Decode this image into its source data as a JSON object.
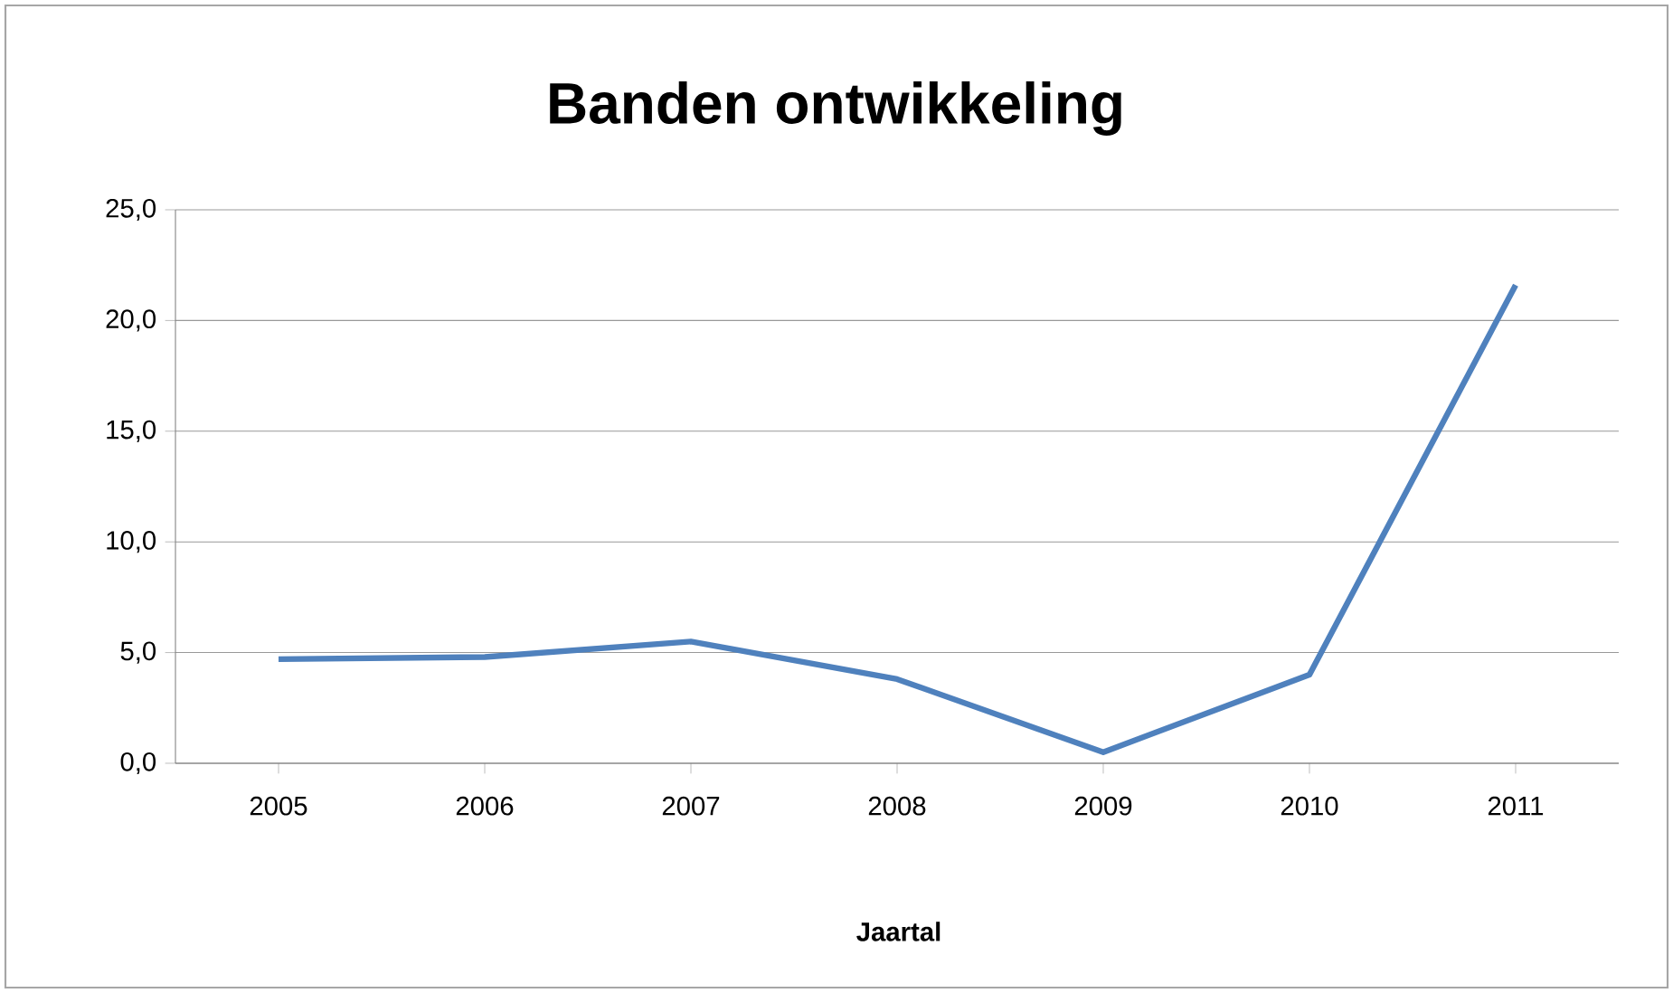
{
  "chart_data": {
    "type": "line",
    "title": "Banden ontwikkeling",
    "xlabel": "Jaartal",
    "categories": [
      "2005",
      "2006",
      "2007",
      "2008",
      "2009",
      "2010",
      "2011"
    ],
    "series": [
      {
        "color": "#4f81bd",
        "values": [
          4.7,
          4.8,
          5.5,
          3.8,
          0.5,
          4.0,
          21.6
        ]
      }
    ],
    "ylim": [
      0,
      25
    ],
    "yticks": [
      {
        "value": 0,
        "label": "0,0"
      },
      {
        "value": 5,
        "label": "5,0"
      },
      {
        "value": 10,
        "label": "10,0"
      },
      {
        "value": 15,
        "label": "15,0"
      },
      {
        "value": 20,
        "label": "20,0"
      },
      {
        "value": 25,
        "label": "25,0"
      }
    ],
    "grid": "y",
    "marker": "none",
    "line_style": "solid"
  }
}
